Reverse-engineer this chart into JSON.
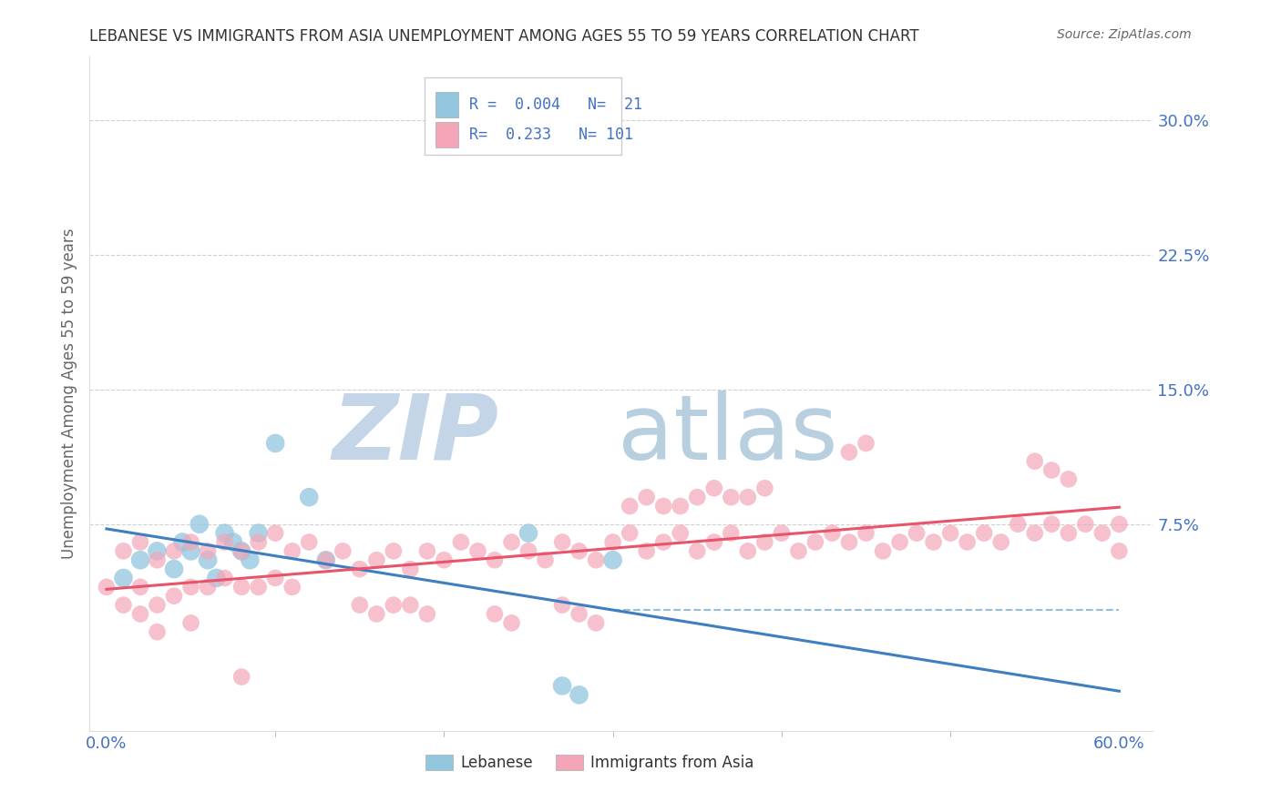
{
  "title": "LEBANESE VS IMMIGRANTS FROM ASIA UNEMPLOYMENT AMONG AGES 55 TO 59 YEARS CORRELATION CHART",
  "source": "Source: ZipAtlas.com",
  "ylabel": "Unemployment Among Ages 55 to 59 years",
  "xlim": [
    0.0,
    0.6
  ],
  "ylim": [
    -0.04,
    0.335
  ],
  "y_ticks": [
    0.075,
    0.15,
    0.225,
    0.3
  ],
  "y_tick_labels": [
    "7.5%",
    "15.0%",
    "22.5%",
    "30.0%"
  ],
  "x_tick_labels": [
    "0.0%",
    "60.0%"
  ],
  "legend_R_blue": "0.004",
  "legend_N_blue": "21",
  "legend_R_pink": "0.233",
  "legend_N_pink": "101",
  "blue_color": "#92c5de",
  "pink_color": "#f4a6b8",
  "blue_line_color": "#3d7fc1",
  "pink_line_color": "#e8546a",
  "dashed_line_color": "#85b8d9",
  "grid_color": "#d0d0d0",
  "tick_label_color": "#4472c4",
  "watermark_zip": "ZIP",
  "watermark_atlas": "atlas",
  "watermark_color_zip": "#c5d5e8",
  "watermark_color_atlas": "#b8cfe0",
  "blue_x": [
    0.01,
    0.02,
    0.03,
    0.04,
    0.045,
    0.05,
    0.055,
    0.06,
    0.065,
    0.07,
    0.075,
    0.08,
    0.085,
    0.09,
    0.1,
    0.12,
    0.13,
    0.25,
    0.27,
    0.28,
    0.3
  ],
  "blue_y": [
    0.045,
    0.055,
    0.06,
    0.05,
    0.065,
    0.06,
    0.075,
    0.055,
    0.045,
    0.07,
    0.065,
    0.06,
    0.055,
    0.07,
    0.12,
    0.09,
    0.055,
    0.07,
    -0.015,
    -0.02,
    0.055
  ],
  "pink_x": [
    0.0,
    0.01,
    0.01,
    0.02,
    0.02,
    0.02,
    0.03,
    0.03,
    0.03,
    0.04,
    0.04,
    0.05,
    0.05,
    0.05,
    0.06,
    0.06,
    0.07,
    0.07,
    0.08,
    0.08,
    0.09,
    0.09,
    0.1,
    0.1,
    0.11,
    0.11,
    0.12,
    0.13,
    0.14,
    0.15,
    0.16,
    0.17,
    0.18,
    0.19,
    0.2,
    0.21,
    0.22,
    0.23,
    0.24,
    0.25,
    0.26,
    0.27,
    0.28,
    0.29,
    0.3,
    0.31,
    0.32,
    0.33,
    0.34,
    0.35,
    0.36,
    0.37,
    0.38,
    0.39,
    0.4,
    0.41,
    0.42,
    0.43,
    0.44,
    0.45,
    0.46,
    0.47,
    0.48,
    0.49,
    0.5,
    0.51,
    0.52,
    0.53,
    0.54,
    0.55,
    0.56,
    0.57,
    0.58,
    0.59,
    0.6,
    0.6,
    0.44,
    0.45,
    0.38,
    0.39,
    0.35,
    0.34,
    0.36,
    0.37,
    0.33,
    0.32,
    0.31,
    0.55,
    0.56,
    0.57,
    0.27,
    0.28,
    0.29,
    0.23,
    0.24,
    0.18,
    0.19,
    0.15,
    0.16,
    0.17,
    0.08
  ],
  "pink_y": [
    0.04,
    0.06,
    0.03,
    0.065,
    0.04,
    0.025,
    0.055,
    0.03,
    0.015,
    0.06,
    0.035,
    0.065,
    0.04,
    0.02,
    0.06,
    0.04,
    0.065,
    0.045,
    0.06,
    0.04,
    0.065,
    0.04,
    0.07,
    0.045,
    0.06,
    0.04,
    0.065,
    0.055,
    0.06,
    0.05,
    0.055,
    0.06,
    0.05,
    0.06,
    0.055,
    0.065,
    0.06,
    0.055,
    0.065,
    0.06,
    0.055,
    0.065,
    0.06,
    0.055,
    0.065,
    0.07,
    0.06,
    0.065,
    0.07,
    0.06,
    0.065,
    0.07,
    0.06,
    0.065,
    0.07,
    0.06,
    0.065,
    0.07,
    0.065,
    0.07,
    0.06,
    0.065,
    0.07,
    0.065,
    0.07,
    0.065,
    0.07,
    0.065,
    0.075,
    0.07,
    0.075,
    0.07,
    0.075,
    0.07,
    0.075,
    0.06,
    0.115,
    0.12,
    0.09,
    0.095,
    0.09,
    0.085,
    0.095,
    0.09,
    0.085,
    0.09,
    0.085,
    0.11,
    0.105,
    0.1,
    0.03,
    0.025,
    0.02,
    0.025,
    0.02,
    0.03,
    0.025,
    0.03,
    0.025,
    0.03,
    -0.01
  ]
}
